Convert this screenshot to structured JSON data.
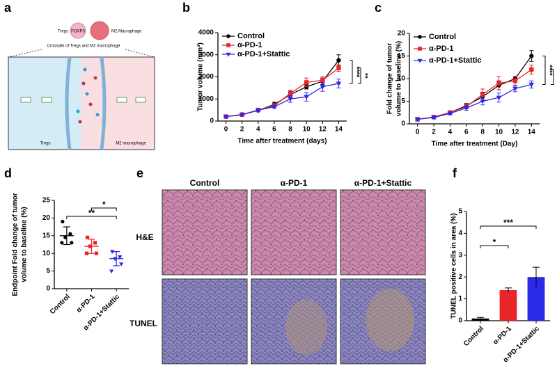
{
  "panel_letters": [
    "a",
    "b",
    "c",
    "d",
    "e",
    "f"
  ],
  "diagram": {
    "top_left": "Tregs",
    "cell": "FOXP3",
    "top_right": "M2 Macrophage",
    "caption": "Crosstalk of Tregs and M2 macrophage",
    "left_region": "Tregs",
    "right_region": "M2 macrophage"
  },
  "images": {
    "columns": [
      "Control",
      "α-PD-1",
      "α-PD-1+Stattic"
    ],
    "rows": [
      "H&E",
      "TUNEL"
    ]
  },
  "chart_data": [
    {
      "type": "line",
      "ylabel": [
        "Tumor volume (mm³)"
      ],
      "xlabel": "Time after treatment (days)",
      "x": [
        0,
        2,
        4,
        6,
        8,
        10,
        12,
        14
      ],
      "xlim": [
        -1,
        15
      ],
      "xticks": [
        0,
        2,
        4,
        6,
        8,
        10,
        12,
        14
      ],
      "ylim": [
        0,
        4000
      ],
      "yticks": [
        0,
        1000,
        2000,
        3000,
        4000
      ],
      "series": [
        {
          "name": "Control",
          "color": "#000000",
          "marker": "circle",
          "values": [
            200,
            300,
            480,
            750,
            1200,
            1550,
            1800,
            2750
          ],
          "errors": [
            20,
            30,
            50,
            100,
            150,
            100,
            150,
            250
          ]
        },
        {
          "name": "α-PD-1",
          "color": "#e8262a",
          "marker": "square",
          "values": [
            200,
            290,
            500,
            700,
            1250,
            1750,
            1850,
            2400
          ],
          "errors": [
            20,
            30,
            50,
            80,
            150,
            200,
            150,
            150
          ]
        },
        {
          "name": "α-PD-1+Stattic",
          "color": "#2a2ae8",
          "marker": "triangle",
          "values": [
            200,
            280,
            490,
            650,
            1000,
            1100,
            1550,
            1700
          ],
          "errors": [
            20,
            30,
            50,
            80,
            150,
            200,
            200,
            200
          ]
        }
      ],
      "significance": [
        "****",
        "**"
      ]
    },
    {
      "type": "line",
      "ylabel": [
        "Fold change of tumor",
        "volume to baseline (%)"
      ],
      "xlabel": "Time after treatment (Day)",
      "x": [
        0,
        2,
        4,
        6,
        8,
        10,
        12,
        14
      ],
      "xlim": [
        -1,
        15
      ],
      "xticks": [
        0,
        2,
        4,
        6,
        8,
        10,
        12,
        14
      ],
      "ylim": [
        0,
        20
      ],
      "yticks": [
        0,
        5,
        10,
        15,
        20
      ],
      "series": [
        {
          "name": "Control",
          "color": "#000000",
          "marker": "circle",
          "values": [
            1,
            1.5,
            2.5,
            4,
            6,
            8.5,
            10,
            15
          ],
          "errors": [
            0.1,
            0.2,
            0.3,
            0.5,
            1,
            1,
            0.5,
            1.2
          ]
        },
        {
          "name": "α-PD-1",
          "color": "#e8262a",
          "marker": "square",
          "values": [
            1,
            1.5,
            2.5,
            3.8,
            6.5,
            9,
            9.5,
            12
          ],
          "errors": [
            0.1,
            0.2,
            0.3,
            0.5,
            1.2,
            1.5,
            1,
            1
          ]
        },
        {
          "name": "α-PD-1+Stattic",
          "color": "#2a2ae8",
          "marker": "triangle",
          "values": [
            1,
            1.4,
            2.3,
            3.5,
            5,
            5.8,
            7.8,
            8.7
          ],
          "errors": [
            0.1,
            0.2,
            0.3,
            0.5,
            0.8,
            1,
            0.7,
            0.8
          ]
        }
      ],
      "significance": [
        "****",
        "**"
      ]
    },
    {
      "type": "dot",
      "ylabel": [
        "Endpoint Fold change of tumor",
        "volume to baseline (%)"
      ],
      "categories": [
        "Control",
        "α-PD-1",
        "α-PD-1+Stattic"
      ],
      "ylim": [
        0,
        25
      ],
      "yticks": [
        0,
        5,
        10,
        15,
        20,
        25
      ],
      "colors": [
        "#000000",
        "#e8262a",
        "#2a2ae8"
      ],
      "markers": [
        "circle",
        "square",
        "triangle"
      ],
      "points": [
        [
          19,
          15.5,
          14.5,
          13,
          13
        ],
        [
          14.5,
          13,
          12,
          10,
          10
        ],
        [
          10.5,
          9,
          8.5,
          7,
          5
        ]
      ],
      "means": [
        15,
        12,
        8.5
      ],
      "sds": [
        2.5,
        2,
        2
      ],
      "significance": [
        "*",
        "**"
      ]
    },
    {
      "type": "bar",
      "ylabel": [
        "TUNEL positive cells in area  (%)"
      ],
      "categories": [
        "Control",
        "α-PD-1",
        "α-PD-1+Stattic"
      ],
      "ylim": [
        0,
        5
      ],
      "yticks": [
        0,
        1,
        2,
        3,
        4,
        5
      ],
      "colors": [
        "#000000",
        "#e8262a",
        "#2a2ae8"
      ],
      "values": [
        0.1,
        1.4,
        2.0
      ],
      "errors": [
        0.05,
        0.1,
        0.45
      ],
      "significance": [
        "*",
        "***"
      ]
    }
  ]
}
